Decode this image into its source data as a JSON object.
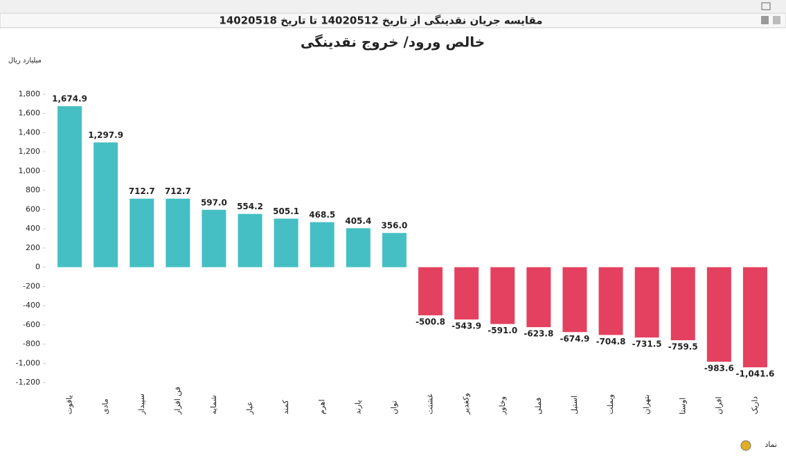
{
  "header": {
    "title": "مقایسه جریان نقدینگی از تاریخ 14020512 تا تاریخ 14020518"
  },
  "chart_data": {
    "type": "bar",
    "title": "خالص ورود/ خروج نقدینگی",
    "y_label": "میلیارد ریال",
    "x_label": "نماد",
    "categories": [
      "یاقوت",
      "مادی",
      "سپیدار",
      "فن افزار",
      "شمایه",
      "عیار",
      "کمند",
      "اهرم",
      "پارند",
      "توان",
      "غشتت",
      "وکغدیر",
      "وخاور",
      "فملی",
      "استیل",
      "وبملت",
      "بتهران",
      "اوستا",
      "افران",
      "داریک"
    ],
    "values": [
      1674.9,
      1297.9,
      712.7,
      712.7,
      597.0,
      554.2,
      505.1,
      468.5,
      405.4,
      356.0,
      -500.8,
      -543.9,
      -591.0,
      -623.8,
      -674.9,
      -704.8,
      -731.5,
      -759.5,
      -983.6,
      -1041.6
    ],
    "value_labels": [
      "1,674.9",
      "1,297.9",
      "712.7",
      "712.7",
      "597.0",
      "554.2",
      "505.1",
      "468.5",
      "405.4",
      "356.0",
      "-500.8",
      "-543.9",
      "-591.0",
      "-623.8",
      "-674.9",
      "-704.8",
      "-731.5",
      "-759.5",
      "-983.6",
      "-1,041.6"
    ],
    "positive_color": "#45bfc4",
    "negative_color": "#e3415f",
    "ylim": [
      -1300,
      1900
    ],
    "yticks": [
      {
        "value": -1200,
        "label": "-1,200"
      },
      {
        "value": -1000,
        "label": "-1,000"
      },
      -800,
      -600,
      -400,
      -200,
      0,
      200,
      400,
      600,
      800,
      {
        "value": 1000,
        "label": "1,000"
      },
      {
        "value": 1200,
        "label": "1,200"
      },
      {
        "value": 1400,
        "label": "1,400"
      },
      {
        "value": 1600,
        "label": "1,600"
      },
      {
        "value": 1800,
        "label": "1,800"
      }
    ],
    "grid": false
  }
}
